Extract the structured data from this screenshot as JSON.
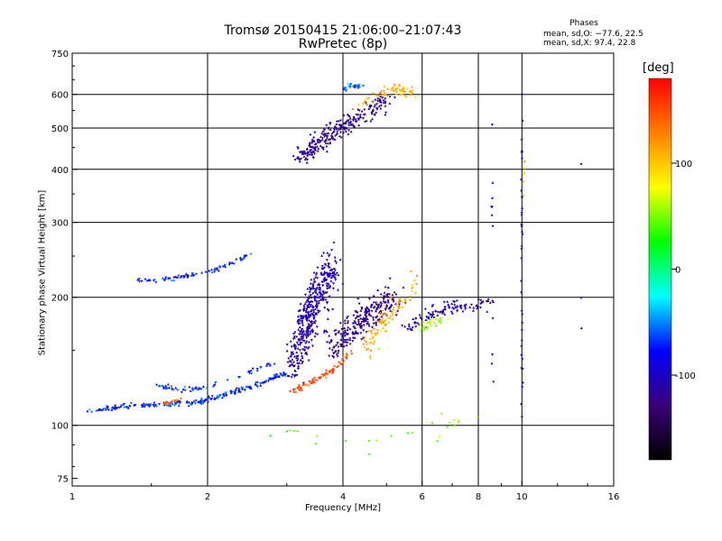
{
  "colors": {
    "frame": "#000000",
    "background": "#ffffff"
  },
  "chart_data": {
    "type": "scatter",
    "title": "Tromsø 20150415 21:06:00–21:07:43",
    "subtitle": "RwPretec (8p)",
    "xlabel": "Frequency [MHz]",
    "ylabel": "Stationary phase Virtual Height [km]",
    "x_scale": "log",
    "y_scale": "log",
    "xlim": [
      1,
      16
    ],
    "ylim": [
      72,
      750
    ],
    "x_ticks": [
      1,
      2,
      4,
      6,
      8,
      10,
      16
    ],
    "x_tick_labels": [
      "1",
      "2",
      "4",
      "6",
      "8",
      "10",
      "16"
    ],
    "y_ticks": [
      75,
      100,
      200,
      300,
      400,
      500,
      600,
      750
    ],
    "y_tick_labels": [
      "75",
      "100",
      "200",
      "300",
      "400",
      "500",
      "600",
      "750"
    ],
    "grid_x": [
      2,
      4,
      6,
      8,
      10
    ],
    "grid_y": [
      100,
      200,
      300,
      400,
      500,
      600
    ],
    "grid": true,
    "stats": {
      "heading": "Phases",
      "o_line": "mean, sd,O: −77.6, 22.5",
      "x_line": "mean, sd,X:  97.4, 22.8"
    },
    "colorbar": {
      "label": "[deg]",
      "range": [
        -180,
        180
      ],
      "ticks": [
        100,
        0,
        -100
      ],
      "tick_labels": [
        "100",
        "0",
        "-100"
      ],
      "colors": [
        "#ff0000",
        "#ff8000",
        "#ffff00",
        "#00ff00",
        "#00ffff",
        "#0000ff",
        "#3a0078",
        "#000000"
      ]
    },
    "clusters": [
      {
        "name": "",
        "phase": -70,
        "x": [
          1.42,
          1.6,
          1.8,
          2.0,
          2.25,
          2.5
        ],
        "y": [
          219,
          220,
          224,
          230,
          240,
          252
        ],
        "n": 80,
        "spread": [
          0.02,
          0.012
        ]
      },
      {
        "name": "",
        "phase": -70,
        "x": [
          1.1,
          1.3,
          1.6,
          1.9,
          2.2,
          2.6,
          3.0
        ],
        "y": [
          108,
          111,
          112,
          113,
          118,
          125,
          133
        ],
        "n": 220,
        "spread": [
          0.02,
          0.012
        ]
      },
      {
        "name": "",
        "phase": -70,
        "x": [
          1.55,
          1.75,
          2.0,
          2.4,
          2.8
        ],
        "y": [
          124,
          121,
          123,
          132,
          140
        ],
        "n": 60,
        "spread": [
          0.02,
          0.012
        ]
      },
      {
        "name": "",
        "phase": 140,
        "x": [
          1.6,
          1.75
        ],
        "y": [
          113,
          115
        ],
        "n": 15,
        "spread": [
          0.01,
          0.01
        ]
      },
      {
        "name": "",
        "phase": -110,
        "x": [
          3.1,
          3.3,
          3.5,
          3.8
        ],
        "y": [
          140,
          170,
          200,
          240
        ],
        "n": 420,
        "spread": [
          0.05,
          0.12
        ]
      },
      {
        "name": "",
        "phase": -120,
        "x": [
          3.8,
          4.2,
          4.6,
          5.2
        ],
        "y": [
          150,
          170,
          185,
          200
        ],
        "n": 260,
        "spread": [
          0.05,
          0.08
        ]
      },
      {
        "name": "",
        "phase": 110,
        "x": [
          4.5,
          4.8,
          5.3,
          5.8
        ],
        "y": [
          150,
          170,
          190,
          220
        ],
        "n": 90,
        "spread": [
          0.03,
          0.07
        ]
      },
      {
        "name": "",
        "phase": 150,
        "x": [
          3.1,
          3.4,
          3.8,
          4.2
        ],
        "y": [
          120,
          126,
          135,
          150
        ],
        "n": 70,
        "spread": [
          0.015,
          0.015
        ]
      },
      {
        "name": "",
        "phase": -110,
        "x": [
          5.5,
          6.2,
          6.8,
          7.5,
          8.5
        ],
        "y": [
          170,
          180,
          190,
          190,
          195
        ],
        "n": 110,
        "spread": [
          0.03,
          0.04
        ]
      },
      {
        "name": "",
        "phase": 60,
        "x": [
          6.0,
          6.8
        ],
        "y": [
          170,
          180
        ],
        "n": 30,
        "spread": [
          0.03,
          0.03
        ]
      },
      {
        "name": "",
        "phase": -120,
        "x": [
          3.2,
          3.5,
          3.9,
          4.5,
          5.0
        ],
        "y": [
          430,
          460,
          500,
          540,
          580
        ],
        "n": 260,
        "spread": [
          0.04,
          0.05
        ]
      },
      {
        "name": "",
        "phase": 110,
        "x": [
          4.3,
          4.8,
          5.3,
          5.7
        ],
        "y": [
          560,
          600,
          620,
          600
        ],
        "n": 60,
        "spread": [
          0.025,
          0.025
        ]
      },
      {
        "name": "",
        "phase": -60,
        "x": [
          4.0,
          4.4
        ],
        "y": [
          620,
          630
        ],
        "n": 25,
        "spread": [
          0.02,
          0.02
        ]
      },
      {
        "name": "",
        "phase": -110,
        "x": [
          10.0,
          10.0
        ],
        "y": [
          110,
          600
        ],
        "n": 40,
        "spread": [
          0.004,
          0.25
        ]
      },
      {
        "name": "",
        "phase": 100,
        "x": [
          10.1,
          10.1
        ],
        "y": [
          320,
          420
        ],
        "n": 6,
        "spread": [
          0.004,
          0.05
        ]
      },
      {
        "name": "",
        "phase": -110,
        "x": [
          8.6,
          8.6
        ],
        "y": [
          110,
          550
        ],
        "n": 12,
        "spread": [
          0.005,
          0.2
        ]
      },
      {
        "name": "",
        "phase": 50,
        "x": [
          2.5,
          4.5,
          6.5,
          8.0
        ],
        "y": [
          100,
          90,
          95,
          110
        ],
        "n": 25,
        "spread": [
          0.12,
          0.05
        ]
      },
      {
        "name": "",
        "phase": -100,
        "x": [
          13.5,
          13.5
        ],
        "y": [
          115,
          560
        ],
        "n": 3,
        "spread": [
          0.01,
          0.2
        ]
      }
    ]
  }
}
